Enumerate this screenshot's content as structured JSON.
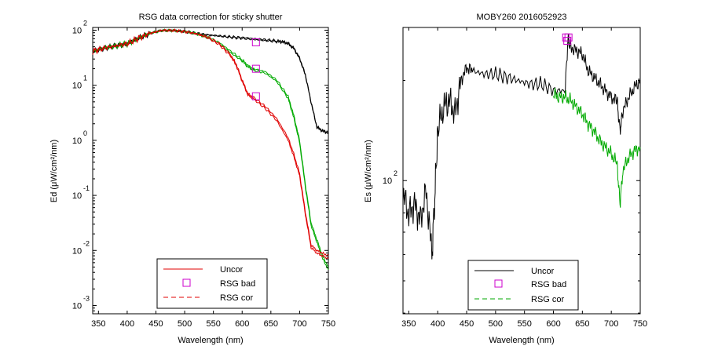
{
  "colors": {
    "uncor": "#000000",
    "rsg_bad": "#cc00cc",
    "rsg_cor": "#00aa00",
    "red": "#e00000",
    "axis": "#000000"
  },
  "chart_data": [
    {
      "type": "line",
      "title": "RSG data correction for sticky shutter",
      "xlabel": "Wavelength (nm)",
      "ylabel": "Ed (μW/cm²/nm)",
      "xlim": [
        340,
        750
      ],
      "ylim_log10": [
        -3.15,
        2.05
      ],
      "y_scale": "log",
      "grid": false,
      "x_ticks": [
        "350",
        "400",
        "450",
        "500",
        "550",
        "600",
        "650",
        "700",
        "750"
      ],
      "y_ticks": [
        {
          "base": "10",
          "exp": "2",
          "value": 2
        },
        {
          "base": "10",
          "exp": "1",
          "value": 1
        },
        {
          "base": "10",
          "exp": "0",
          "value": 0
        },
        {
          "base": "10",
          "exp": "-1",
          "value": -1
        },
        {
          "base": "10",
          "exp": "-2",
          "value": -2
        },
        {
          "base": "10",
          "exp": "-3",
          "value": -3
        }
      ],
      "legend": {
        "placement": "bottom-center",
        "entries": [
          {
            "label": "Uncor",
            "style": "solid",
            "color_key": "red"
          },
          {
            "label": "RSG bad",
            "style": "square",
            "color_key": "rsg_bad"
          },
          {
            "label": "RSG cor",
            "style": "dashed",
            "color_key": "red"
          }
        ]
      },
      "series": [
        {
          "color_key": "uncor",
          "x": [
            340,
            360,
            380,
            400,
            420,
            440,
            460,
            480,
            500,
            520,
            540,
            560,
            580,
            600,
            620,
            640,
            660,
            670,
            680,
            690,
            700,
            710,
            720,
            730,
            740,
            750
          ],
          "y": [
            1.62,
            1.68,
            1.72,
            1.76,
            1.86,
            1.95,
            2.0,
            2.0,
            1.98,
            1.95,
            1.92,
            1.9,
            1.88,
            1.87,
            1.85,
            1.83,
            1.81,
            1.8,
            1.77,
            1.68,
            1.5,
            1.2,
            0.7,
            0.25,
            0.18,
            0.15
          ]
        },
        {
          "color_key": "uncor",
          "x": [
            340,
            360,
            380,
            400,
            420,
            440,
            460,
            480,
            500,
            520,
            540,
            560,
            580,
            600,
            620,
            640,
            660,
            670,
            680,
            690,
            700,
            710,
            720,
            730,
            740,
            750
          ],
          "y": [
            1.61,
            1.67,
            1.71,
            1.75,
            1.85,
            1.94,
            1.99,
            1.99,
            1.97,
            1.94,
            1.91,
            1.89,
            1.87,
            1.85,
            1.83,
            1.81,
            1.79,
            1.78,
            1.75,
            1.66,
            1.48,
            1.18,
            0.68,
            0.23,
            0.16,
            0.13
          ]
        },
        {
          "color_key": "rsg_cor",
          "x": [
            340,
            360,
            380,
            400,
            420,
            440,
            460,
            480,
            500,
            520,
            540,
            560,
            580,
            600,
            610,
            620,
            640,
            660,
            680,
            690,
            700,
            710,
            720,
            730,
            740,
            750
          ],
          "y": [
            1.62,
            1.68,
            1.72,
            1.76,
            1.86,
            1.95,
            2.0,
            2.0,
            1.98,
            1.94,
            1.88,
            1.78,
            1.62,
            1.47,
            1.36,
            1.3,
            1.25,
            1.1,
            0.8,
            0.45,
            0.0,
            -0.8,
            -1.5,
            -1.8,
            -2.1,
            -2.3
          ]
        },
        {
          "color_key": "rsg_cor",
          "x": [
            340,
            360,
            380,
            400,
            420,
            440,
            460,
            480,
            500,
            520,
            540,
            560,
            580,
            600,
            610,
            620,
            640,
            660,
            680,
            690,
            700,
            710,
            720,
            730,
            740,
            750
          ],
          "y": [
            1.61,
            1.67,
            1.71,
            1.75,
            1.85,
            1.94,
            1.99,
            1.99,
            1.97,
            1.93,
            1.86,
            1.76,
            1.59,
            1.44,
            1.33,
            1.27,
            1.22,
            1.07,
            0.76,
            0.4,
            -0.05,
            -0.85,
            -1.55,
            -1.85,
            -2.15,
            -2.35
          ]
        },
        {
          "color_key": "red",
          "x": [
            340,
            360,
            380,
            400,
            420,
            440,
            460,
            480,
            500,
            520,
            540,
            560,
            580,
            590,
            600,
            610,
            620,
            640,
            660,
            680,
            690,
            700,
            710,
            720,
            730,
            740,
            750
          ],
          "y": [
            1.62,
            1.68,
            1.72,
            1.76,
            1.86,
            1.95,
            2.0,
            2.0,
            1.98,
            1.94,
            1.88,
            1.76,
            1.56,
            1.38,
            1.1,
            0.85,
            0.78,
            0.62,
            0.4,
            0.05,
            -0.25,
            -0.6,
            -1.3,
            -1.9,
            -2.0,
            -2.05,
            -2.1
          ]
        },
        {
          "color_key": "red",
          "x": [
            340,
            360,
            380,
            400,
            420,
            440,
            460,
            480,
            500,
            520,
            540,
            560,
            580,
            590,
            600,
            610,
            620,
            640,
            660,
            680,
            690,
            700,
            710,
            720,
            730,
            740,
            750
          ],
          "y": [
            1.61,
            1.67,
            1.71,
            1.75,
            1.85,
            1.94,
            1.99,
            1.99,
            1.97,
            1.93,
            1.86,
            1.74,
            1.53,
            1.35,
            1.07,
            0.82,
            0.75,
            0.58,
            0.36,
            0.0,
            -0.3,
            -0.65,
            -1.35,
            -1.95,
            -2.05,
            -2.1,
            -2.15
          ]
        }
      ],
      "markers": [
        {
          "x": 624,
          "y": 1.78
        },
        {
          "x": 624,
          "y": 1.3
        },
        {
          "x": 624,
          "y": 0.8
        }
      ]
    },
    {
      "type": "line",
      "title": "MOBY260  2016052923",
      "xlabel": "Wavelength (nm)",
      "ylabel": "Es (μW/cm²/nm)",
      "xlim": [
        340,
        750
      ],
      "ylim_log10": [
        1.6,
        2.46
      ],
      "y_scale": "log",
      "grid": false,
      "x_ticks": [
        "350",
        "400",
        "450",
        "500",
        "550",
        "600",
        "650",
        "700",
        "750"
      ],
      "y_ticks": [
        {
          "base": "10",
          "exp": "2",
          "value": 2
        }
      ],
      "legend": {
        "placement": "bottom-center",
        "entries": [
          {
            "label": "Uncor",
            "style": "solid",
            "color_key": "uncor"
          },
          {
            "label": "RSG bad",
            "style": "square",
            "color_key": "rsg_bad"
          },
          {
            "label": "RSG cor",
            "style": "dashed",
            "color_key": "rsg_cor"
          }
        ]
      },
      "series": [
        {
          "color_key": "uncor",
          "x": [
            340,
            350,
            360,
            370,
            380,
            390,
            395,
            400,
            410,
            420,
            430,
            440,
            450,
            460,
            480,
            500,
            520,
            540,
            560,
            580,
            600,
            620,
            625,
            630,
            640,
            650,
            660,
            670,
            680,
            690,
            700,
            710,
            715,
            720,
            730,
            740,
            750
          ],
          "y": [
            1.96,
            1.9,
            1.93,
            1.88,
            1.97,
            1.78,
            1.95,
            2.15,
            2.22,
            2.24,
            2.2,
            2.3,
            2.34,
            2.33,
            2.32,
            2.32,
            2.31,
            2.3,
            2.29,
            2.29,
            2.27,
            2.27,
            2.42,
            2.4,
            2.39,
            2.38,
            2.33,
            2.31,
            2.29,
            2.27,
            2.25,
            2.24,
            2.15,
            2.21,
            2.25,
            2.28,
            2.3
          ]
        },
        {
          "color_key": "rsg_cor",
          "x": [
            600,
            610,
            620,
            630,
            640,
            650,
            660,
            670,
            680,
            690,
            700,
            710,
            715,
            720,
            730,
            740,
            750
          ],
          "y": [
            2.26,
            2.25,
            2.25,
            2.24,
            2.22,
            2.2,
            2.17,
            2.15,
            2.12,
            2.1,
            2.08,
            2.05,
            1.93,
            2.03,
            2.07,
            2.09,
            2.1
          ]
        }
      ],
      "markers": [
        {
          "x": 622,
          "y": 2.43
        },
        {
          "x": 624,
          "y": 2.42
        },
        {
          "x": 626,
          "y": 2.43
        }
      ]
    }
  ]
}
